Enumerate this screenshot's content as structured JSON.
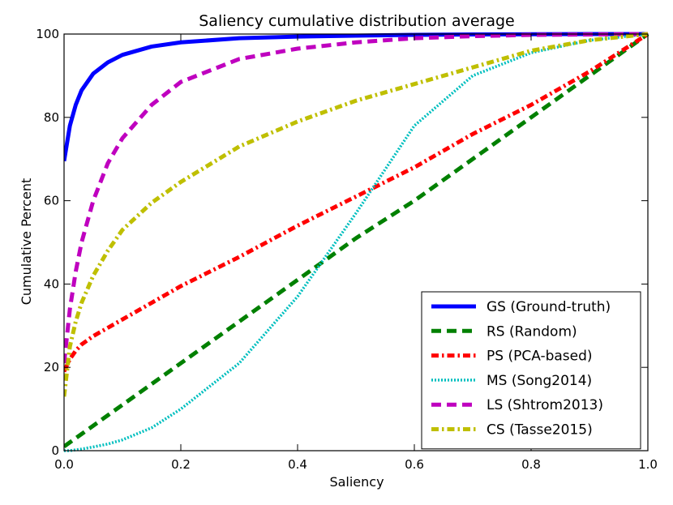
{
  "chart_data": {
    "type": "line",
    "title": "Saliency cumulative distribution average",
    "xlabel": "Saliency",
    "ylabel": "Cumulative Percent",
    "xlim": [
      0.0,
      1.0
    ],
    "ylim": [
      0,
      100
    ],
    "x_ticks": [
      "0.0",
      "0.2",
      "0.4",
      "0.6",
      "0.8",
      "1.0"
    ],
    "y_ticks": [
      "0",
      "20",
      "40",
      "60",
      "80",
      "100"
    ],
    "grid": false,
    "legend_position": "lower-right",
    "x": [
      0.0,
      0.01,
      0.02,
      0.03,
      0.05,
      0.075,
      0.1,
      0.15,
      0.2,
      0.3,
      0.4,
      0.5,
      0.6,
      0.7,
      0.8,
      0.9,
      1.0
    ],
    "series": [
      {
        "name": "GS (Ground-truth)",
        "color": "#0000ff",
        "style": "solid",
        "values": [
          69.5,
          78,
          83,
          86.5,
          90.5,
          93.2,
          95,
          97,
          98,
          99,
          99.4,
          99.6,
          99.8,
          99.9,
          99.95,
          100,
          100
        ]
      },
      {
        "name": "RS (Random)",
        "color": "#008000",
        "style": "dashed",
        "values": [
          1,
          2,
          3,
          4,
          6,
          8.5,
          11,
          16,
          21,
          31,
          41,
          51,
          60,
          70,
          80,
          90,
          100
        ]
      },
      {
        "name": "PS (PCA-based)",
        "color": "#ff0000",
        "style": "dashdot",
        "values": [
          19,
          22,
          24,
          25.5,
          27.5,
          29.5,
          31.5,
          35.5,
          39.5,
          46.5,
          54,
          61,
          68,
          76,
          83,
          91,
          100
        ]
      },
      {
        "name": "MS (Song2014)",
        "color": "#00bfbf",
        "style": "dotted",
        "values": [
          0,
          0,
          0.2,
          0.4,
          0.9,
          1.6,
          2.6,
          5.5,
          10,
          21,
          37,
          57,
          78,
          90,
          95.5,
          98.5,
          100
        ]
      },
      {
        "name": "LS (Shtrom2013)",
        "color": "#bf00bf",
        "style": "dashed",
        "values": [
          21,
          34,
          43,
          50,
          60,
          69,
          75,
          83,
          88.5,
          94,
          96.5,
          98,
          99,
          99.5,
          99.8,
          99.9,
          100
        ]
      },
      {
        "name": "CS (Tasse2015)",
        "color": "#bfbf00",
        "style": "dashdot",
        "values": [
          13,
          25,
          31,
          35.5,
          42,
          48,
          53,
          59.5,
          64.5,
          73,
          79,
          84,
          88,
          92,
          96,
          98.5,
          100
        ]
      }
    ]
  }
}
